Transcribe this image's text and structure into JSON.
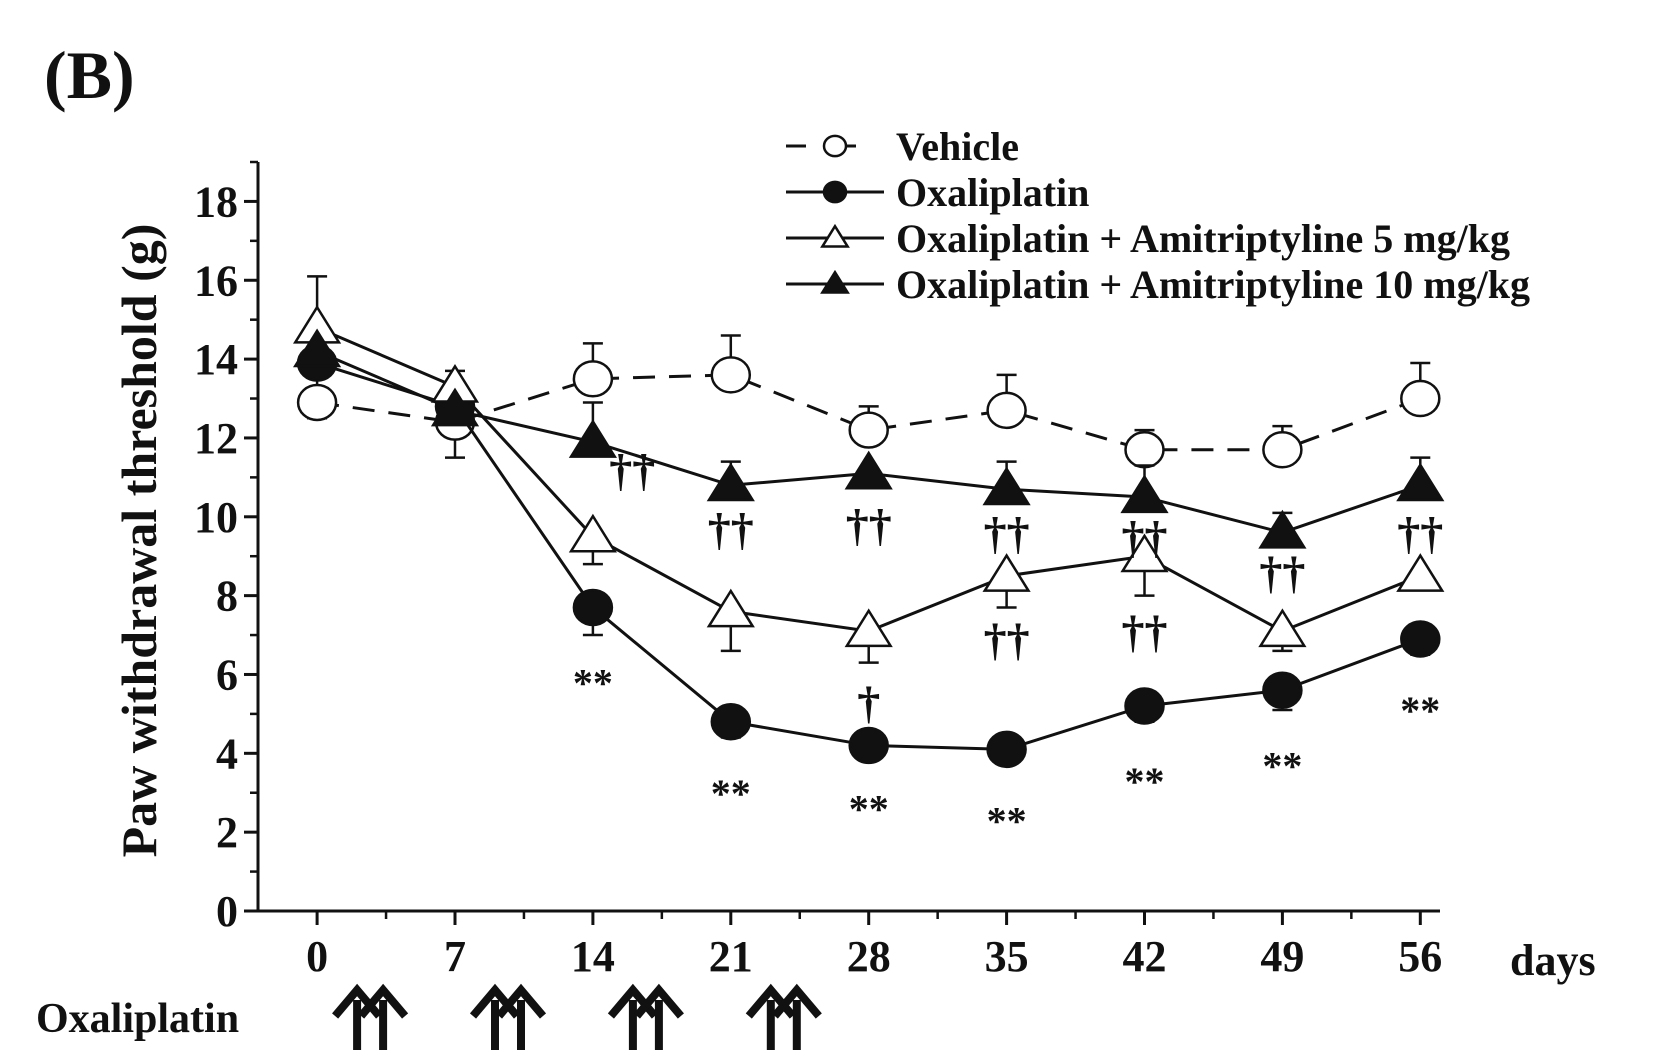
{
  "panel_label": "(B)",
  "chart_data": {
    "type": "line",
    "title": "",
    "xlabel": "days",
    "ylabel": "Paw withdrawal threshold (g)",
    "x": [
      0,
      7,
      14,
      21,
      28,
      35,
      42,
      49,
      56
    ],
    "x_tick_labels": [
      "0",
      "7",
      "14",
      "21",
      "28",
      "35",
      "42",
      "49",
      "56"
    ],
    "xlim": [
      -3,
      57
    ],
    "ylim": [
      0,
      19
    ],
    "y_ticks": [
      0,
      2,
      4,
      6,
      8,
      10,
      12,
      14,
      16,
      18
    ],
    "y_tick_labels": [
      "0",
      "2",
      "4",
      "6",
      "8",
      "10",
      "12",
      "14",
      "16",
      "18"
    ],
    "legend_position": "top-right",
    "series": [
      {
        "name": "Vehicle",
        "marker": "circle-open",
        "dash": true,
        "values": [
          12.9,
          12.4,
          13.5,
          13.6,
          12.2,
          12.7,
          11.7,
          11.7,
          13.0
        ],
        "error_upper": [
          3.2,
          0.0,
          0.9,
          1.0,
          0.6,
          0.9,
          0.5,
          0.6,
          0.9
        ],
        "error_lower": [
          0.4,
          0.9,
          0.0,
          0.0,
          0.0,
          0.0,
          0.0,
          0.0,
          0.0
        ]
      },
      {
        "name": "Oxaliplatin",
        "marker": "circle-filled",
        "dash": false,
        "values": [
          13.9,
          12.8,
          7.7,
          4.8,
          4.2,
          4.1,
          5.2,
          5.6,
          6.9
        ],
        "error_upper": [
          0.0,
          0.0,
          0.0,
          0.0,
          0.0,
          0.0,
          0.0,
          0.0,
          0.0
        ],
        "error_lower": [
          0.0,
          0.0,
          0.7,
          0.4,
          0.0,
          0.0,
          0.4,
          0.5,
          0.4
        ]
      },
      {
        "name": "Oxaliplatin + Amitriptyline 5 mg/kg",
        "marker": "triangle-open",
        "dash": false,
        "values": [
          14.8,
          13.3,
          9.5,
          7.6,
          7.1,
          8.5,
          9.0,
          7.1,
          8.5
        ],
        "error_upper": [
          0.0,
          0.4,
          0.0,
          0.0,
          0.0,
          0.0,
          0.0,
          0.0,
          0.0
        ],
        "error_lower": [
          0.0,
          0.0,
          0.7,
          1.0,
          0.8,
          0.8,
          1.0,
          0.5,
          0.3
        ]
      },
      {
        "name": "Oxaliplatin + Amitriptyline 10 mg/kg",
        "marker": "triangle-filled",
        "dash": false,
        "values": [
          14.2,
          12.7,
          11.9,
          10.8,
          11.1,
          10.7,
          10.5,
          9.6,
          10.8
        ],
        "error_upper": [
          0.0,
          0.0,
          1.0,
          0.6,
          0.0,
          0.7,
          0.8,
          0.5,
          0.7
        ],
        "error_lower": [
          0.0,
          0.0,
          0.0,
          0.0,
          0.0,
          0.0,
          0.0,
          0.0,
          0.0
        ]
      }
    ],
    "annotations": [
      {
        "text": "††",
        "x": 16,
        "y": 11.2
      },
      {
        "text": "††",
        "x": 21,
        "y": 9.7
      },
      {
        "text": "††",
        "x": 28,
        "y": 9.8
      },
      {
        "text": "††",
        "x": 35,
        "y": 9.6
      },
      {
        "text": "††",
        "x": 42,
        "y": 9.5
      },
      {
        "text": "††",
        "x": 49,
        "y": 8.6
      },
      {
        "text": "††",
        "x": 56,
        "y": 9.6
      },
      {
        "text": "††",
        "x": 35,
        "y": 6.9
      },
      {
        "text": "††",
        "x": 42,
        "y": 7.1
      },
      {
        "text": "†",
        "x": 28,
        "y": 5.3
      },
      {
        "text": "**",
        "x": 14,
        "y": 6.1
      },
      {
        "text": "**",
        "x": 21,
        "y": 3.3
      },
      {
        "text": "**",
        "x": 28,
        "y": 2.9
      },
      {
        "text": "**",
        "x": 35,
        "y": 2.6
      },
      {
        "text": "**",
        "x": 42,
        "y": 3.6
      },
      {
        "text": "**",
        "x": 49,
        "y": 4.0
      },
      {
        "text": "**",
        "x": 56,
        "y": 5.4
      }
    ],
    "dosing": {
      "label": "Oxaliplatin",
      "days": [
        0,
        7,
        14,
        21
      ],
      "arrows_per_day": 2
    }
  }
}
